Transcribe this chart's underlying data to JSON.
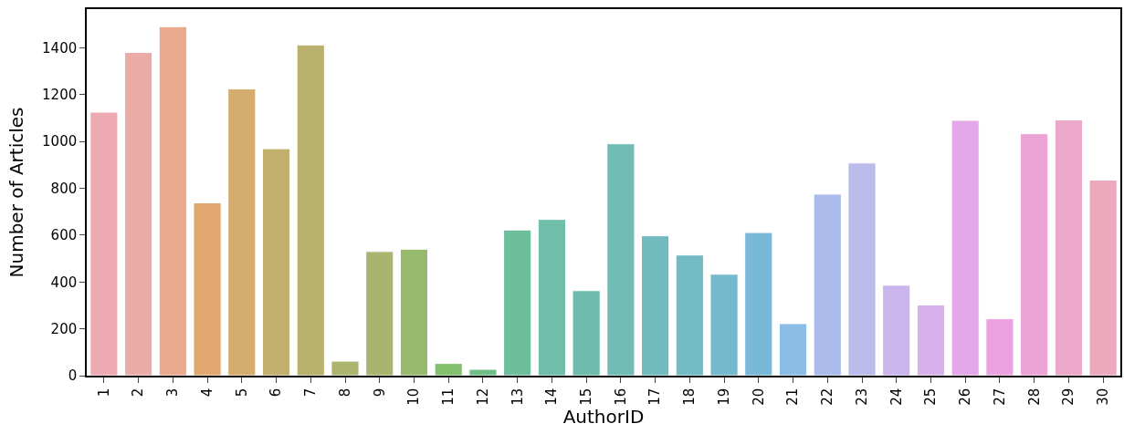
{
  "chart_data": {
    "type": "bar",
    "xlabel": "AuthorID",
    "ylabel": "Number of Articles",
    "categories": [
      "1",
      "2",
      "3",
      "4",
      "5",
      "6",
      "7",
      "8",
      "9",
      "10",
      "11",
      "12",
      "13",
      "14",
      "15",
      "16",
      "17",
      "18",
      "19",
      "20",
      "21",
      "22",
      "23",
      "24",
      "25",
      "26",
      "27",
      "28",
      "29",
      "30"
    ],
    "values": [
      1125,
      1380,
      1490,
      738,
      1224,
      969,
      1412,
      62,
      530,
      540,
      52,
      27,
      622,
      667,
      363,
      990,
      597,
      515,
      433,
      611,
      222,
      775,
      908,
      386,
      302,
      1090,
      243,
      1033,
      1092,
      835
    ],
    "colors": [
      "#eeaab3",
      "#ebaba6",
      "#e9a98c",
      "#e0a870",
      "#d3ac6e",
      "#c4b06e",
      "#bab06e",
      "#adb46e",
      "#a7b56f",
      "#98ba6e",
      "#82c06e",
      "#6fbe86",
      "#6dbf9b",
      "#6ebea9",
      "#6ebcae",
      "#70bcb5",
      "#71bbbf",
      "#72bac4",
      "#74b9cc",
      "#78b9d8",
      "#8abde6",
      "#abbcec",
      "#bcbcec",
      "#cab6ec",
      "#d8b0ec",
      "#e4a7e9",
      "#eba2e0",
      "#eca4d6",
      "#eca8cb",
      "#eca8bd"
    ],
    "ylim": [
      0,
      1565
    ],
    "yticks": [
      0,
      200,
      400,
      600,
      800,
      1000,
      1200,
      1400
    ]
  }
}
